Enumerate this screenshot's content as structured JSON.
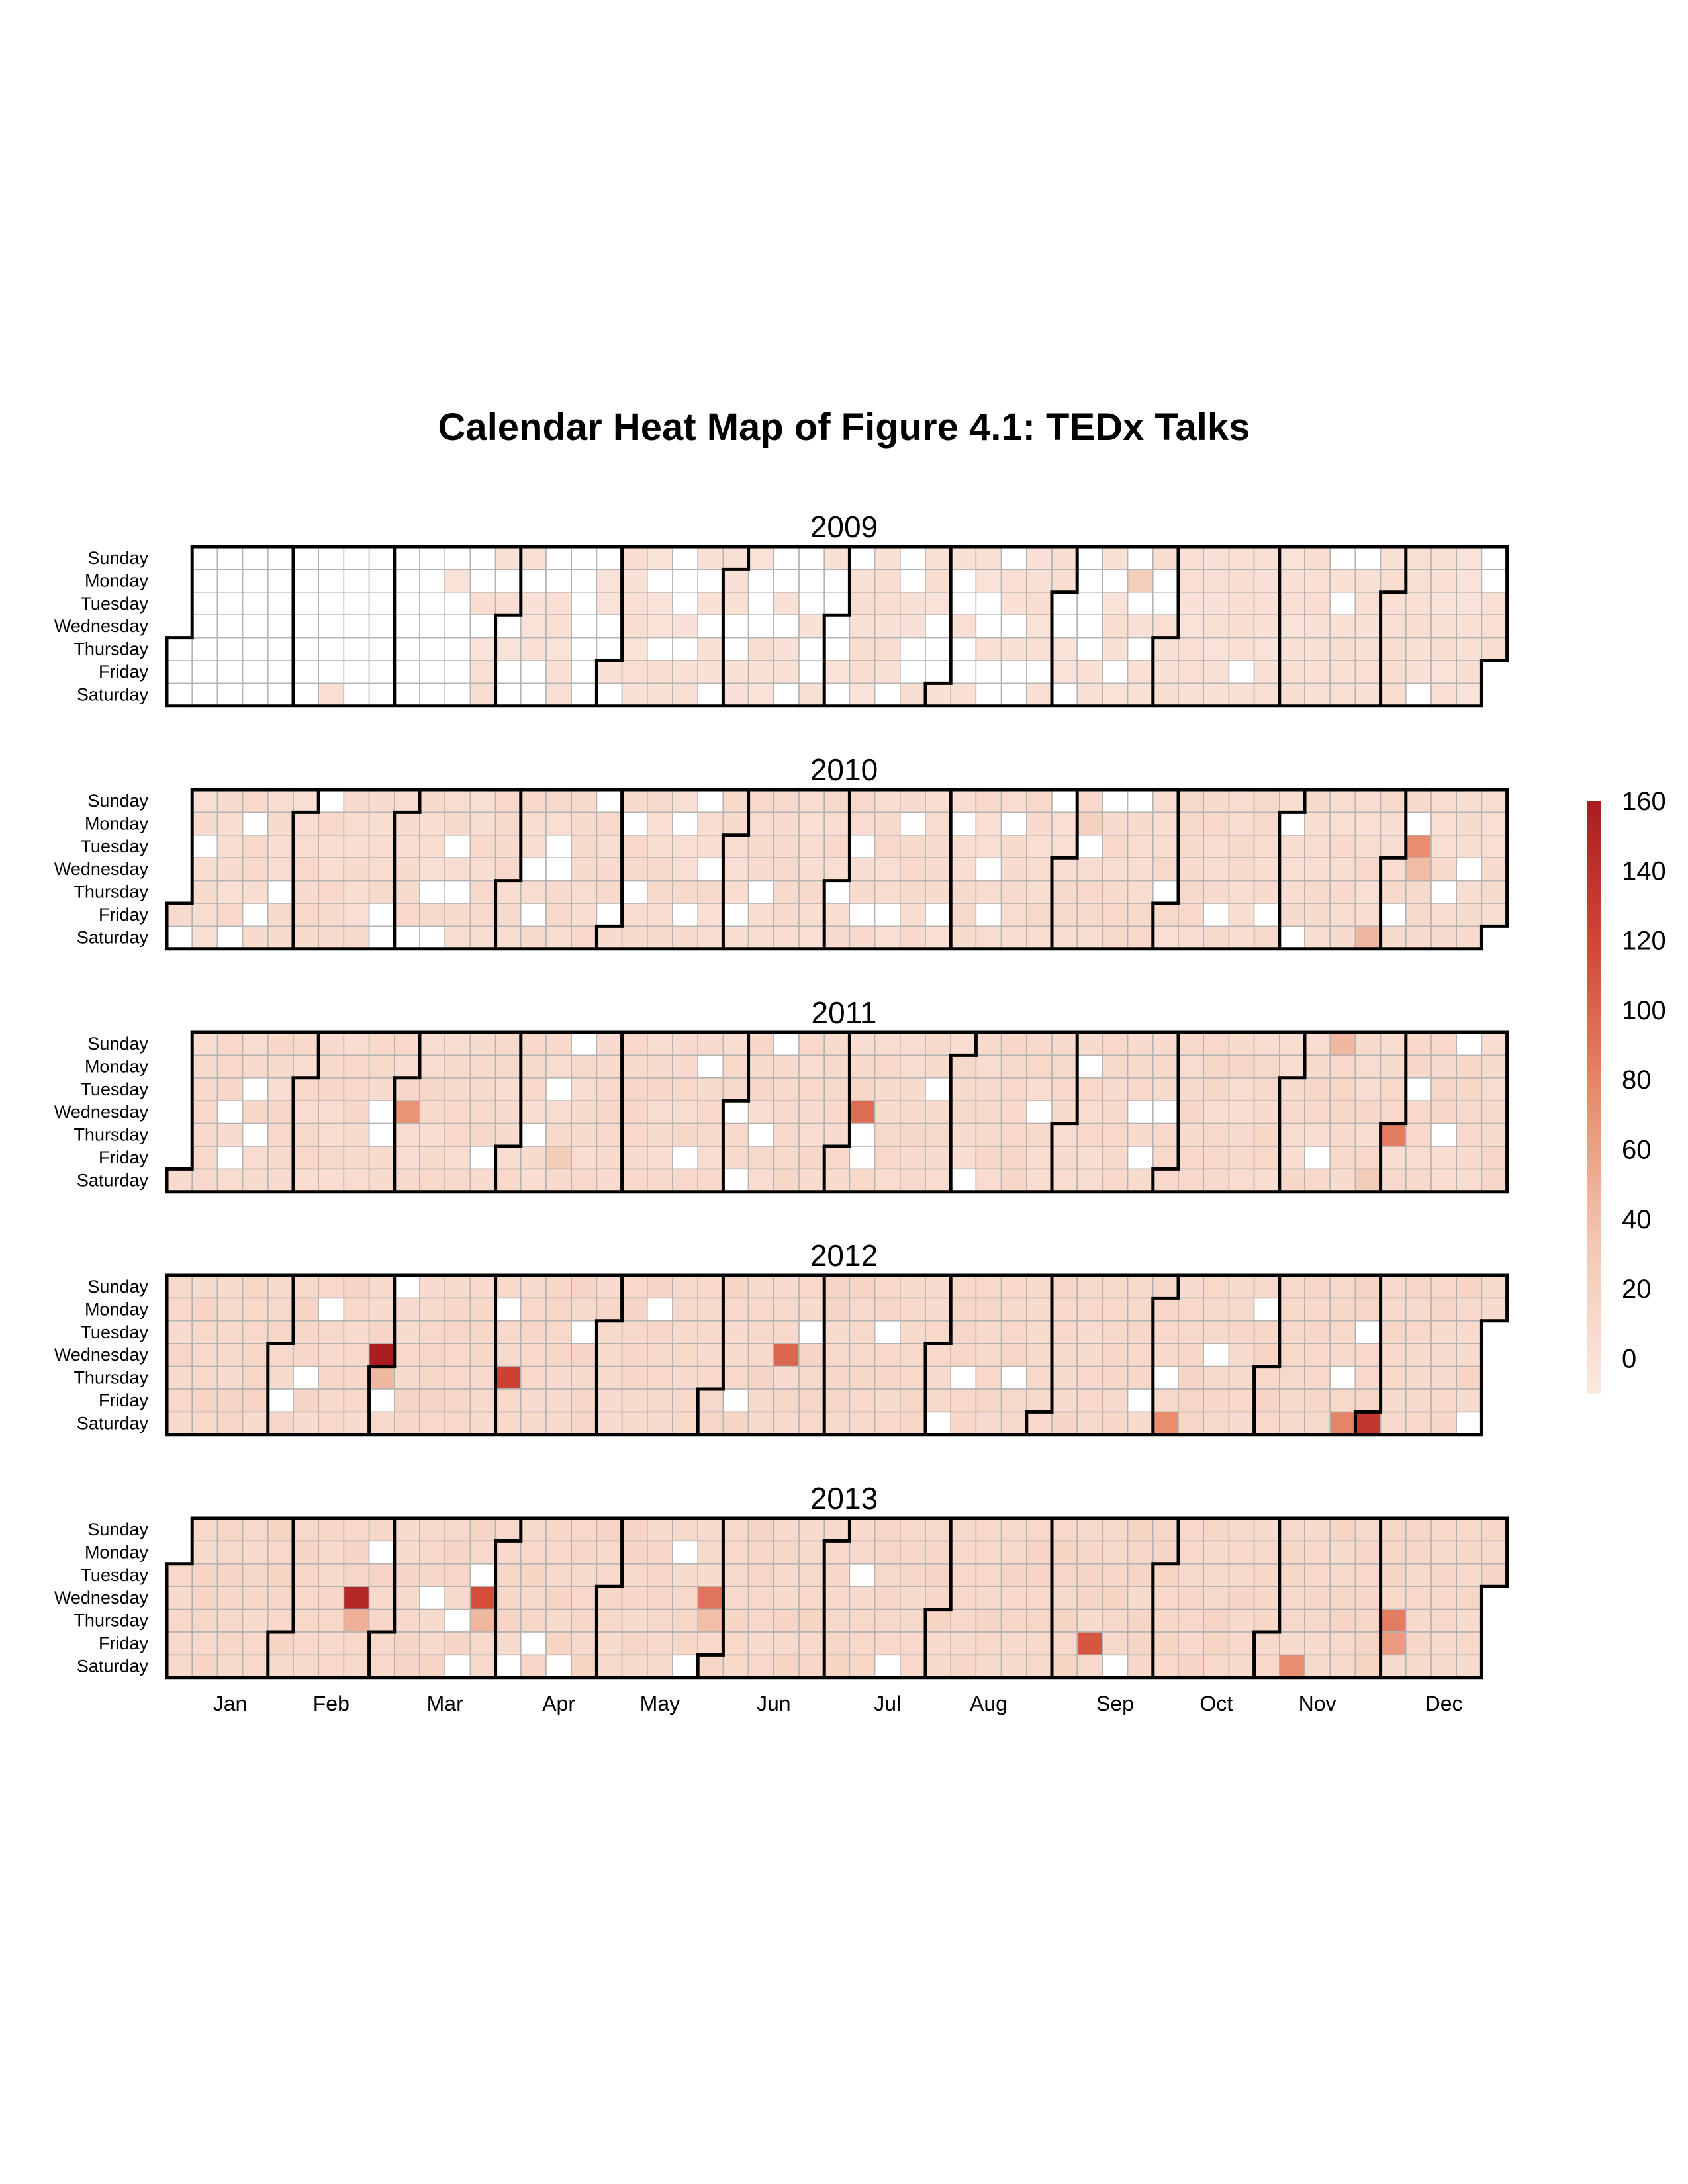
{
  "chart_data": {
    "type": "heatmap",
    "title": "Calendar Heat Map of Figure 4.1: TEDx Talks",
    "years": [
      "2009",
      "2010",
      "2011",
      "2012",
      "2013"
    ],
    "day_labels": [
      "Sunday",
      "Monday",
      "Tuesday",
      "Wednesday",
      "Thursday",
      "Friday",
      "Saturday"
    ],
    "month_labels": [
      "Jan",
      "Feb",
      "Mar",
      "Apr",
      "May",
      "Jun",
      "Jul",
      "Aug",
      "Sep",
      "Oct",
      "Nov",
      "Dec"
    ],
    "legend": {
      "ticks": [
        "160",
        "140",
        "120",
        "100",
        "80",
        "60",
        "40",
        "20",
        "0"
      ],
      "range": [
        -10,
        160
      ],
      "placement": "right",
      "colors": [
        "#fbe9e1",
        "#f3c9b5",
        "#e88d6e",
        "#d24a38",
        "#a91d21"
      ]
    },
    "grid": true,
    "empty_color": "#ffffff",
    "grid_line_color": "#b3b3b3",
    "month_border_color": "#000000",
    "calendars": [
      {
        "year": "2009",
        "base_level": 0,
        "white_fraction": 0.5,
        "zero_before": "2009-03-15",
        "nonzero_from": "2009-09-27",
        "highlights": [
          {
            "date": "2009-09-21",
            "value": 25
          }
        ]
      },
      {
        "year": "2010",
        "base_level": 6,
        "white_fraction": 0.16,
        "highlights": [
          {
            "date": "2010-09-06",
            "value": 22
          },
          {
            "date": "2010-11-27",
            "value": 45
          },
          {
            "date": "2010-12-07",
            "value": 75
          },
          {
            "date": "2010-12-08",
            "value": 42
          }
        ]
      },
      {
        "year": "2011",
        "base_level": 8,
        "white_fraction": 0.08,
        "highlights": [
          {
            "date": "2011-03-02",
            "value": 70
          },
          {
            "date": "2011-04-15",
            "value": 28
          },
          {
            "date": "2011-07-06",
            "value": 95
          },
          {
            "date": "2011-11-13",
            "value": 45
          },
          {
            "date": "2011-12-01",
            "value": 85
          },
          {
            "date": "2011-11-26",
            "value": 28
          }
        ]
      },
      {
        "year": "2012",
        "base_level": 10,
        "white_fraction": 0.05,
        "highlights": [
          {
            "date": "2012-02-29",
            "value": 160
          },
          {
            "date": "2012-03-01",
            "value": 45
          },
          {
            "date": "2012-04-05",
            "value": 125
          },
          {
            "date": "2012-06-20",
            "value": 100
          },
          {
            "date": "2012-10-06",
            "value": 75
          },
          {
            "date": "2012-11-24",
            "value": 80
          },
          {
            "date": "2012-12-01",
            "value": 135
          }
        ]
      },
      {
        "year": "2013",
        "base_level": 11,
        "white_fraction": 0.04,
        "highlights": [
          {
            "date": "2013-02-20",
            "value": 150
          },
          {
            "date": "2013-02-21",
            "value": 50
          },
          {
            "date": "2013-03-27",
            "value": 115
          },
          {
            "date": "2013-03-28",
            "value": 45
          },
          {
            "date": "2013-05-29",
            "value": 90
          },
          {
            "date": "2013-05-30",
            "value": 40
          },
          {
            "date": "2013-09-13",
            "value": 110
          },
          {
            "date": "2013-11-09",
            "value": 75
          },
          {
            "date": "2013-12-05",
            "value": 85
          },
          {
            "date": "2013-12-06",
            "value": 65
          }
        ]
      }
    ]
  }
}
